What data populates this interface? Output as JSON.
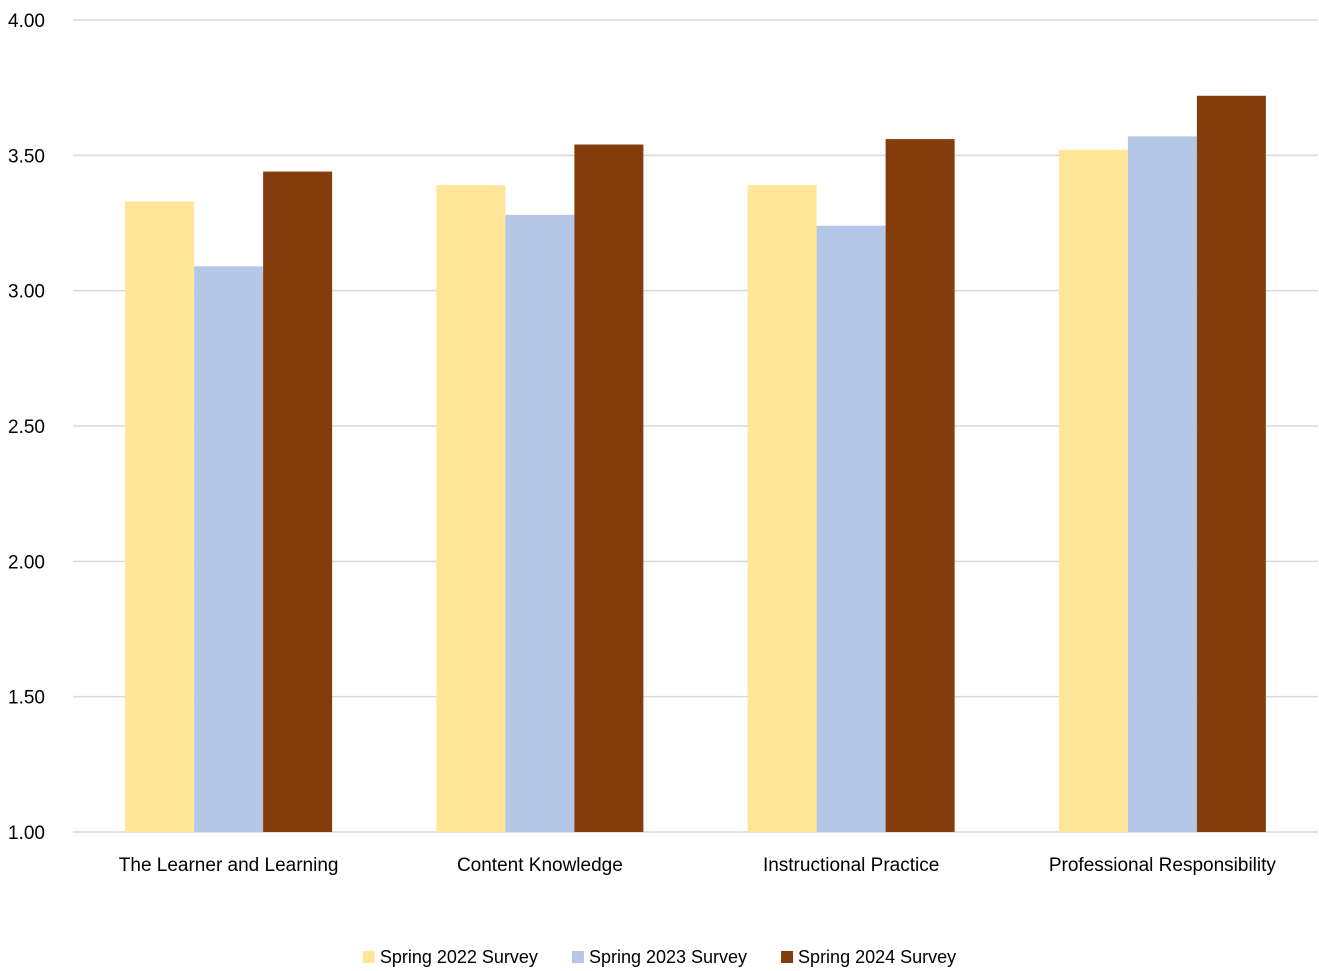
{
  "chart_data": {
    "type": "bar",
    "categories": [
      "The Learner and Learning",
      "Content Knowledge",
      "Instructional Practice",
      "Professional Responsibility"
    ],
    "series": [
      {
        "name": "Spring 2022 Survey",
        "color": "#FFE699",
        "values": [
          3.33,
          3.39,
          3.39,
          3.52
        ]
      },
      {
        "name": "Spring 2023 Survey",
        "color": "#B4C7E7",
        "values": [
          3.09,
          3.28,
          3.24,
          3.57
        ]
      },
      {
        "name": "Spring 2024 Survey",
        "color": "#843C0C",
        "values": [
          3.44,
          3.54,
          3.56,
          3.72
        ]
      }
    ],
    "ylim": [
      1.0,
      4.0
    ],
    "yticks": [
      "1.00",
      "1.50",
      "2.00",
      "2.50",
      "3.00",
      "3.50",
      "4.00"
    ],
    "grid": true,
    "legend_position": "bottom",
    "gridline_color": "#D9D9D9"
  }
}
